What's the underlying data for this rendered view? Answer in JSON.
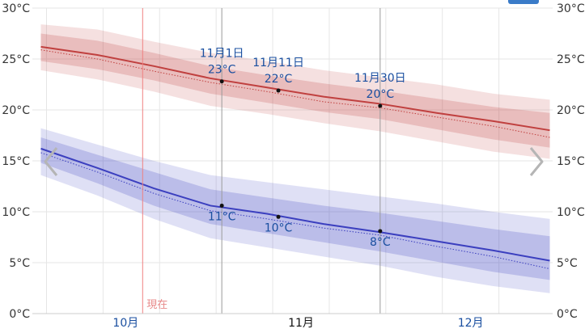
{
  "chart_data": {
    "type": "line",
    "ylim": [
      0,
      30
    ],
    "yticks": [
      "0°C",
      "5°C",
      "10°C",
      "15°C",
      "20°C",
      "25°C",
      "30°C"
    ],
    "month_labels": [
      {
        "label": "10月",
        "day": 15,
        "color": "#1a4fa0"
      },
      {
        "label": "11月",
        "day": 46,
        "color": "#111111"
      },
      {
        "label": "12月",
        "day": 76,
        "color": "#1a4fa0"
      }
    ],
    "x_range": [
      -1.5,
      90.5
    ],
    "now": {
      "label": "現在",
      "day": 18
    },
    "series": [
      {
        "key": "high",
        "color": "#c0403f",
        "days": [
          0,
          10,
          20,
          30,
          40,
          50,
          60,
          70,
          80,
          90
        ],
        "mean": [
          26.2,
          25.4,
          24.3,
          23.1,
          22.2,
          21.3,
          20.6,
          19.7,
          18.9,
          18.0
        ],
        "normal": [
          25.9,
          25.0,
          23.8,
          22.7,
          21.8,
          20.8,
          20.2,
          19.3,
          18.4,
          17.3
        ],
        "inner": [
          [
            24.8,
            27.5
          ],
          [
            24.0,
            26.8
          ],
          [
            22.9,
            25.6
          ],
          [
            21.6,
            24.3
          ],
          [
            20.7,
            23.4
          ],
          [
            19.8,
            22.6
          ],
          [
            19.1,
            21.9
          ],
          [
            18.1,
            21.1
          ],
          [
            17.1,
            20.3
          ],
          [
            16.3,
            19.7
          ]
        ],
        "outer": [
          [
            23.9,
            28.4
          ],
          [
            23.0,
            27.9
          ],
          [
            21.8,
            26.7
          ],
          [
            20.4,
            25.6
          ],
          [
            19.6,
            24.8
          ],
          [
            18.7,
            23.9
          ],
          [
            17.9,
            23.2
          ],
          [
            16.9,
            22.5
          ],
          [
            15.9,
            21.6
          ],
          [
            15.2,
            21.0
          ]
        ]
      },
      {
        "key": "low",
        "color": "#3b3fbf",
        "days": [
          0,
          10,
          20,
          30,
          40,
          50,
          60,
          70,
          80,
          90
        ],
        "mean": [
          16.2,
          14.3,
          12.3,
          10.6,
          9.8,
          8.8,
          8.0,
          7.1,
          6.2,
          5.2
        ],
        "normal": [
          15.8,
          13.9,
          11.8,
          10.1,
          9.3,
          8.4,
          7.7,
          6.6,
          5.6,
          4.4
        ],
        "inner": [
          [
            14.8,
            17.3
          ],
          [
            12.8,
            15.6
          ],
          [
            10.6,
            13.9
          ],
          [
            8.8,
            12.2
          ],
          [
            7.9,
            11.4
          ],
          [
            7.0,
            10.6
          ],
          [
            6.1,
            9.9
          ],
          [
            5.1,
            9.1
          ],
          [
            4.1,
            8.3
          ],
          [
            3.3,
            7.6
          ]
        ],
        "outer": [
          [
            13.6,
            18.2
          ],
          [
            11.6,
            16.6
          ],
          [
            9.3,
            15.0
          ],
          [
            7.4,
            13.6
          ],
          [
            6.5,
            12.9
          ],
          [
            5.6,
            12.2
          ],
          [
            4.7,
            11.5
          ],
          [
            3.6,
            10.8
          ],
          [
            2.7,
            10.0
          ],
          [
            2.0,
            9.3
          ]
        ]
      }
    ],
    "reference_lines": [
      32,
      60
    ],
    "annotations": [
      {
        "date": "11月1日",
        "value": "23°C",
        "day": 32,
        "y": 22.8,
        "series": "high"
      },
      {
        "date": "11月11日",
        "value": "22°C",
        "day": 42,
        "y": 21.9,
        "series": "high"
      },
      {
        "date": "11月30日",
        "value": "20°C",
        "day": 60,
        "y": 20.4,
        "series": "high"
      },
      {
        "value": "11°C",
        "day": 32,
        "y": 10.6,
        "series": "low"
      },
      {
        "value": "10°C",
        "day": 42,
        "y": 9.5,
        "series": "low"
      },
      {
        "value": "8°C",
        "day": 60,
        "y": 8.1,
        "series": "low"
      }
    ]
  },
  "icons": {
    "prev": "chevron-left-icon",
    "next": "chevron-right-icon"
  }
}
